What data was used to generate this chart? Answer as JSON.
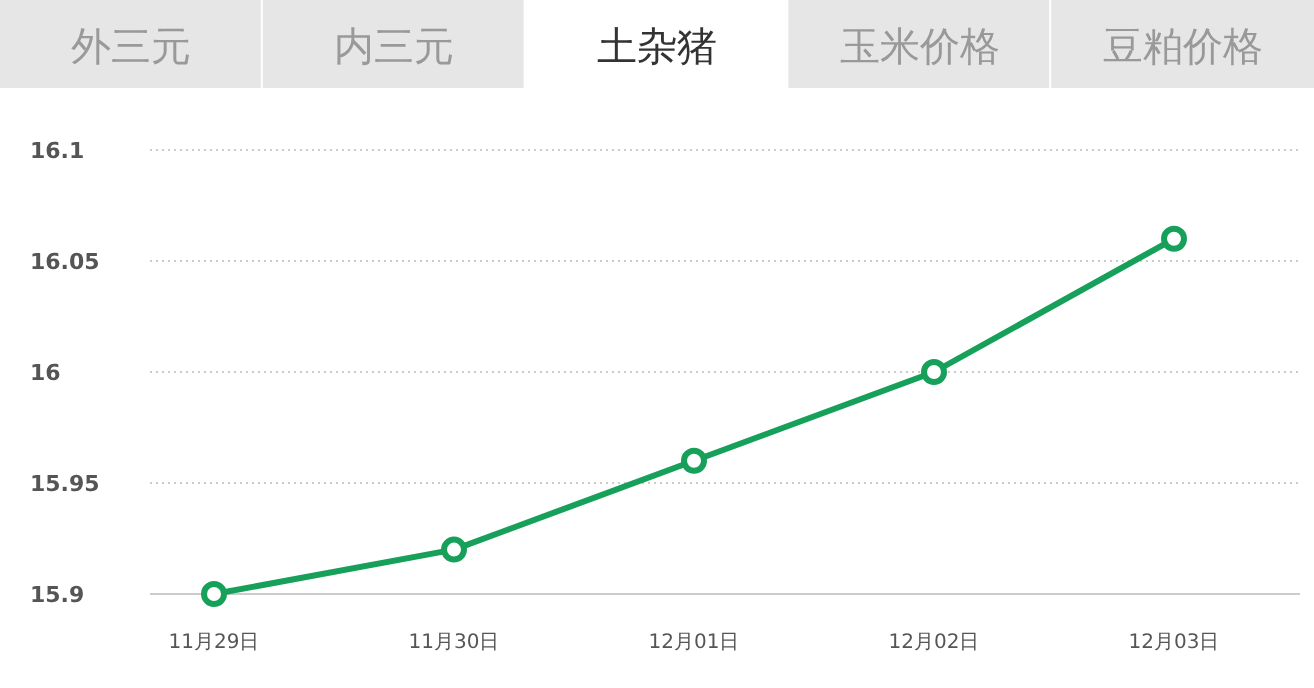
{
  "chart_data": {
    "type": "line",
    "title": "土杂猪",
    "annotations": [
      "外三元",
      "内三元",
      "玉米价格",
      "豆粕价格"
    ],
    "categories": [
      "11月29日",
      "11月30日",
      "12月01日",
      "12月02日",
      "12月03日"
    ],
    "series": [
      {
        "color": "#16a05a",
        "values": [
          15.9,
          15.92,
          15.96,
          16,
          16.06
        ]
      }
    ],
    "ylim": [
      15.9,
      16.1
    ],
    "yticks": [
      15.9,
      15.95,
      16,
      16.05,
      16.1
    ],
    "grid": "y",
    "marker": "circle",
    "line_style": "solid"
  }
}
